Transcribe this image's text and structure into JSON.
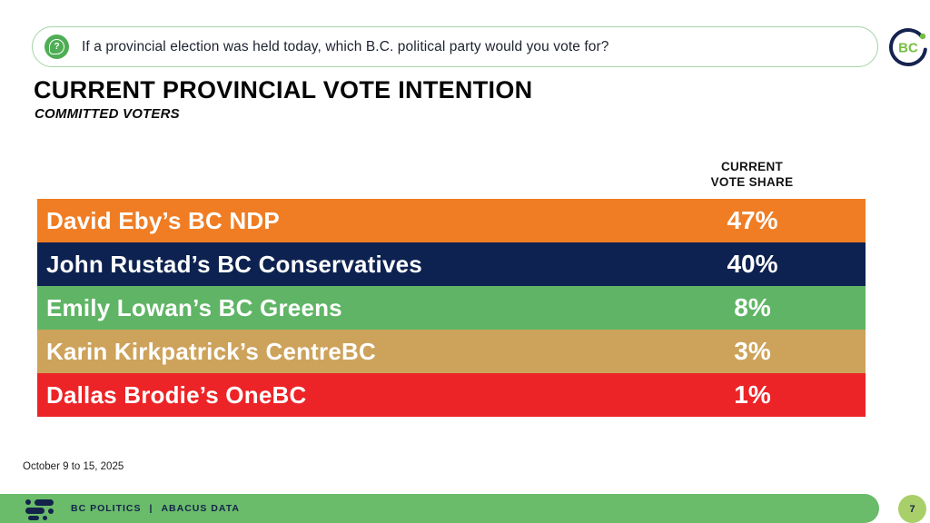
{
  "colors": {
    "ndp_orange": "#F07D23",
    "conservative_navy": "#0D2250",
    "green_party": "#5FB565",
    "centrebc_tan": "#CDA25A",
    "onebc_red": "#EC2427",
    "footer_green": "#6ABB6A",
    "badge_green": "#A9CF6A",
    "icon_green": "#4FAE55",
    "banner_border_green": "#A9D5A9",
    "logo_navy": "#15234F",
    "logo_green": "#76BE43"
  },
  "question_banner": {
    "text": "If a provincial election was held today, which B.C. political party would you vote for?"
  },
  "brand_logo": {
    "text": "BC"
  },
  "header": {
    "title": "CURRENT PROVINCIAL VOTE INTENTION",
    "subtitle": "COMMITTED VOTERS"
  },
  "table_header": {
    "line1": "CURRENT",
    "line2": "VOTE SHARE"
  },
  "chart_data": {
    "type": "table",
    "title": "CURRENT PROVINCIAL VOTE INTENTION",
    "subtitle": "COMMITTED VOTERS",
    "value_column_header": "CURRENT VOTE SHARE",
    "categories": [
      "David Eby’s BC NDP",
      "John Rustad’s BC Conservatives",
      "Emily Lowan’s BC Greens",
      "Karin Kirkpatrick’s CentreBC",
      "Dallas Brodie’s OneBC"
    ],
    "values": [
      47,
      40,
      8,
      3,
      1
    ],
    "value_labels": [
      "47%",
      "40%",
      "8%",
      "3%",
      "1%"
    ],
    "row_colors": [
      "#F07D23",
      "#0D2250",
      "#5FB565",
      "#CDA25A",
      "#EC2427"
    ]
  },
  "footer": {
    "date_note": "October 9 to 15, 2025",
    "brand_left": "BC POLITICS",
    "brand_divider": "|",
    "brand_right": "ABACUS DATA",
    "page_number": "7"
  }
}
